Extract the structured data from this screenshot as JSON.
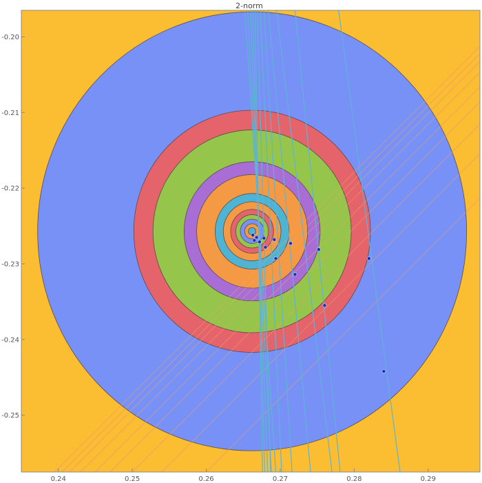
{
  "chart_data": {
    "type": "contour",
    "title": "2-norm",
    "xlabel": "",
    "ylabel": "",
    "xlim": [
      0.235,
      0.297
    ],
    "ylim": [
      -0.2575,
      -0.1965
    ],
    "x_ticks": [
      0.24,
      0.25,
      0.26,
      0.27,
      0.28,
      0.29
    ],
    "x_tick_labels": [
      "0.24",
      "0.25",
      "0.26",
      "0.27",
      "0.28",
      "0.29"
    ],
    "y_ticks": [
      -0.2,
      -0.21,
      -0.22,
      -0.23,
      -0.24,
      -0.25
    ],
    "y_tick_labels": [
      "-0.20",
      "-0.21",
      "-0.22",
      "-0.23",
      "-0.24",
      "-0.25"
    ],
    "grid": false,
    "legend": "none",
    "center": [
      0.2662,
      -0.2257
    ],
    "background_color": "#fbbd31",
    "contour_levels": [
      {
        "radius": 0.029,
        "color": "#7891f7"
      },
      {
        "radius": 0.016,
        "color": "#e5636a"
      },
      {
        "radius": 0.0134,
        "color": "#95c54b"
      },
      {
        "radius": 0.0092,
        "color": "#a86ed6"
      },
      {
        "radius": 0.0075,
        "color": "#f59a44"
      },
      {
        "radius": 0.005,
        "color": "#4fb4d3"
      },
      {
        "radius": 0.0039,
        "color": "#f59a44"
      },
      {
        "radius": 0.0029,
        "color": "#e5636a"
      },
      {
        "radius": 0.0022,
        "color": "#95c54b"
      },
      {
        "radius": 0.0016,
        "color": "#7891f7"
      },
      {
        "radius": 0.001,
        "color": "#f59a44"
      },
      {
        "radius": 0.0005,
        "color": "#4fb4d3"
      }
    ],
    "iterate_points": [
      {
        "x": 0.284,
        "y": -0.2442
      },
      {
        "x": 0.282,
        "y": -0.2293
      },
      {
        "x": 0.276,
        "y": -0.2355
      },
      {
        "x": 0.2752,
        "y": -0.2281
      },
      {
        "x": 0.272,
        "y": -0.2314
      },
      {
        "x": 0.2714,
        "y": -0.2273
      },
      {
        "x": 0.2694,
        "y": -0.2293
      },
      {
        "x": 0.2692,
        "y": -0.2268
      },
      {
        "x": 0.268,
        "y": -0.2278
      },
      {
        "x": 0.2678,
        "y": -0.2266
      },
      {
        "x": 0.2672,
        "y": -0.2271
      },
      {
        "x": 0.2668,
        "y": -0.2265
      },
      {
        "x": 0.2665,
        "y": -0.2269
      },
      {
        "x": 0.2663,
        "y": -0.2262
      }
    ],
    "steep_lines": [
      {
        "x_top": 0.2652,
        "x_bottom": 0.2694
      },
      {
        "x_top": 0.2656,
        "x_bottom": 0.2688
      },
      {
        "x_top": 0.266,
        "x_bottom": 0.2683
      },
      {
        "x_top": 0.2663,
        "x_bottom": 0.2679
      },
      {
        "x_top": 0.2666,
        "x_bottom": 0.2676
      },
      {
        "x_top": 0.2669,
        "x_bottom": 0.2687
      },
      {
        "x_top": 0.2673,
        "x_bottom": 0.2702
      },
      {
        "x_top": 0.2678,
        "x_bottom": 0.2716
      },
      {
        "x_top": 0.2684,
        "x_bottom": 0.2741
      },
      {
        "x_top": 0.2695,
        "x_bottom": 0.277
      },
      {
        "x_top": 0.272,
        "x_bottom": 0.2781
      },
      {
        "x_top": 0.2779,
        "x_bottom": 0.2862
      }
    ],
    "diagonal_lines": [
      {
        "x_bottom": 0.2395,
        "x_top": 0.297
      },
      {
        "x_bottom": 0.2405,
        "x_top": 0.297
      },
      {
        "x_bottom": 0.2415,
        "x_top": 0.297
      },
      {
        "x_bottom": 0.243,
        "x_top": 0.297
      },
      {
        "x_bottom": 0.245,
        "x_top": 0.297
      },
      {
        "x_bottom": 0.247,
        "x_top": 0.297
      },
      {
        "x_bottom": 0.25,
        "x_top": 0.297
      },
      {
        "x_bottom": 0.254,
        "x_top": 0.297
      },
      {
        "x_bottom": 0.26,
        "x_top": 0.297
      }
    ],
    "colors": {
      "steep_line": "#5fb3d6",
      "diagonal_line": "#f0a064",
      "iterate_fill": "#1f2fb3",
      "contour_edge": "#5a4a4a",
      "frame": "#888888"
    }
  }
}
